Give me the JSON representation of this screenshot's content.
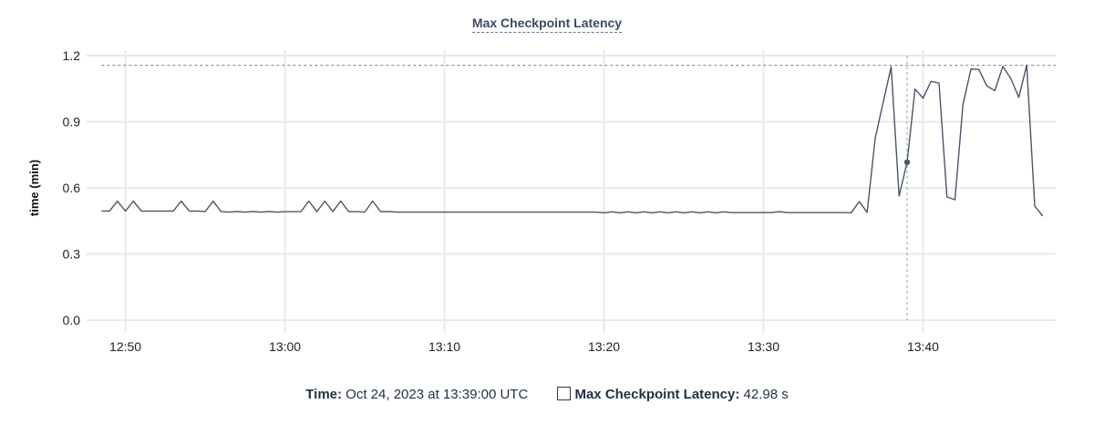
{
  "chart_data": {
    "type": "line",
    "title": "Max Checkpoint Latency",
    "xlabel": "",
    "ylabel": "time (min)",
    "xlim": [
      "12:47:34",
      "13:48:19"
    ],
    "ylim": [
      0,
      1.2
    ],
    "x_ticks": [
      "12:50",
      "13:00",
      "13:10",
      "13:20",
      "13:30",
      "13:40"
    ],
    "y_ticks": [
      "0.0",
      "0.3",
      "0.6",
      "0.9",
      "1.2"
    ],
    "grid": true,
    "line_color": "#4a5568",
    "x_start": "12:48:30",
    "x_step_seconds": 30,
    "series": [
      {
        "name": "Max Checkpoint Latency",
        "values": [
          0.495,
          0.495,
          0.54,
          0.495,
          0.54,
          0.495,
          0.495,
          0.495,
          0.495,
          0.495,
          0.54,
          0.495,
          0.495,
          0.493,
          0.54,
          0.492,
          0.49,
          0.493,
          0.49,
          0.493,
          0.49,
          0.493,
          0.49,
          0.492,
          0.492,
          0.492,
          0.54,
          0.492,
          0.54,
          0.492,
          0.54,
          0.492,
          0.492,
          0.49,
          0.54,
          0.492,
          0.493,
          0.49,
          0.49,
          0.49,
          0.49,
          0.49,
          0.49,
          0.49,
          0.49,
          0.49,
          0.49,
          0.49,
          0.49,
          0.49,
          0.49,
          0.49,
          0.49,
          0.49,
          0.49,
          0.49,
          0.49,
          0.49,
          0.49,
          0.49,
          0.49,
          0.49,
          0.49,
          0.487,
          0.491,
          0.487,
          0.491,
          0.487,
          0.491,
          0.487,
          0.491,
          0.487,
          0.491,
          0.487,
          0.491,
          0.487,
          0.491,
          0.487,
          0.491,
          0.488,
          0.488,
          0.488,
          0.488,
          0.488,
          0.488,
          0.492,
          0.488,
          0.488,
          0.488,
          0.488,
          0.488,
          0.488,
          0.488,
          0.488,
          0.487,
          0.538,
          0.489,
          0.825,
          0.987,
          1.149,
          0.563,
          0.7163,
          1.048,
          1.007,
          1.083,
          1.076,
          0.559,
          0.546,
          0.976,
          1.139,
          1.137,
          1.062,
          1.041,
          1.151,
          1.096,
          1.011,
          1.156,
          0.518,
          0.472
        ]
      }
    ],
    "max_line": 1.156,
    "cursor_time": "13:39:00"
  },
  "legend": {
    "time_label": "Time:",
    "time_value": "Oct 24, 2023 at 13:39:00 UTC",
    "series_label": "Max Checkpoint Latency:",
    "series_value": "42.98 s"
  }
}
